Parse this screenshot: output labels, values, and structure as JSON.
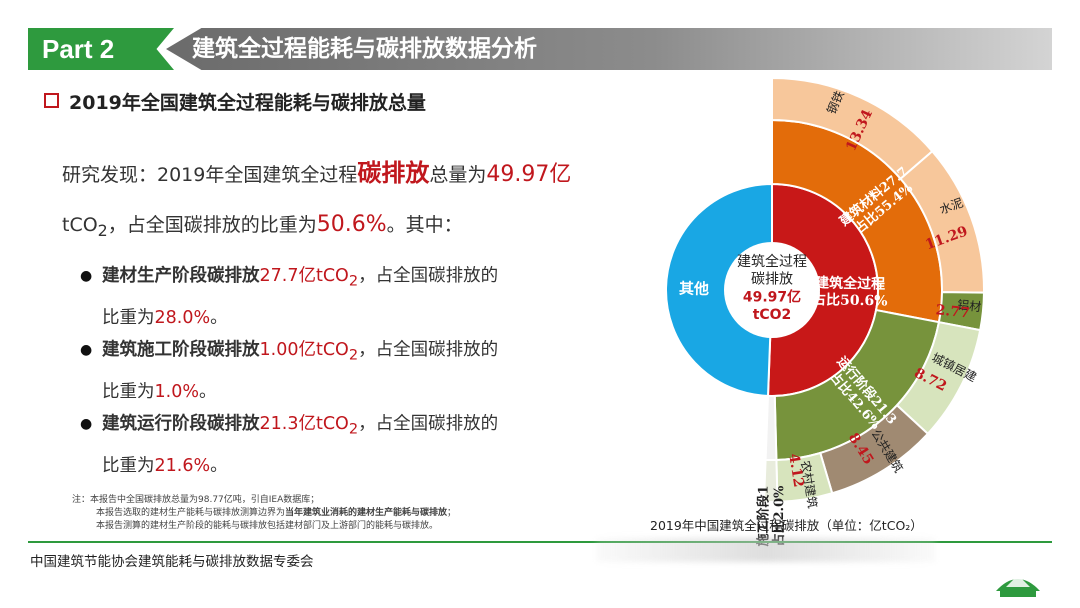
{
  "header": {
    "part_label": "Part 2",
    "title": "建筑全过程能耗与碳排放数据分析"
  },
  "subhead": "2019年全国建筑全过程能耗与碳排放总量",
  "finding": {
    "line1_prefix": "研究发现：2019年全国建筑全过程",
    "line1_emph": "碳排放",
    "line1_mid": "总量为",
    "line1_value": "49.97亿",
    "line2_unit": "tCO",
    "line2_sub": "2",
    "line2_mid": "，占全国碳排放的比重为",
    "line2_value": "50.6%",
    "line2_suffix": "。其中："
  },
  "bullets": [
    {
      "prefix": "建材生产阶段碳排放",
      "value": "27.7亿tCO",
      "sub": "2",
      "suffix": "，占全国碳排放的",
      "share_prefix": "比重为",
      "share": "28.0%",
      "share_suffix": "。"
    },
    {
      "prefix": "建筑施工阶段碳排放",
      "value": "1.00亿tCO",
      "sub": "2",
      "suffix": "，占全国碳排放的",
      "share_prefix": "比重为",
      "share": "1.0%",
      "share_suffix": "。"
    },
    {
      "prefix": "建筑运行阶段碳排放",
      "value": "21.3亿tCO",
      "sub": "2",
      "suffix": "，占全国碳排放的",
      "share_prefix": "比重为",
      "share": "21.6%",
      "share_suffix": "。"
    }
  ],
  "note": {
    "line1": "注：本报告中全国碳排放总量为98.77亿吨，引自IEA数据库；",
    "line2_a": "本报告选取的建材生产能耗与碳排放测算边界为",
    "line2_b": "当年建筑业消耗的建材生产能耗与碳排放",
    "line2_c": "；",
    "line3": "本报告测算的建材生产阶段的能耗与碳排放包括建材部门及上游部门的能耗与碳排放。"
  },
  "footer": "中国建筑节能协会建筑能耗与碳排放数据专委会",
  "chart_data": {
    "type": "sunburst",
    "caption": "2019年中国建筑全过程碳排放（单位：亿tCO₂）",
    "center": {
      "line1": "建筑全过程",
      "line2": "碳排放",
      "value": "49.97亿",
      "unit": "tCO2"
    },
    "colors": {
      "red": "#c81818",
      "blue": "#19a7e4",
      "orange": "#e36c0a",
      "peach": "#f7c79b",
      "green": "#77933c",
      "light_green": "#d7e4bd",
      "brown": "#a08a72"
    },
    "inner_ring": [
      {
        "name": "建筑全过程",
        "label": "建筑全过程占比50.6%",
        "share": 50.6,
        "color": "#c81818"
      },
      {
        "name": "其他",
        "label": "其他",
        "share": 49.4,
        "color": "#19a7e4"
      }
    ],
    "middle_ring": [
      {
        "name": "建筑材料",
        "label1": "建筑材料27.7",
        "label2": "占比55.4%",
        "value": 27.7,
        "share": 55.4,
        "color": "#e36c0a"
      },
      {
        "name": "运行阶段",
        "label1": "运行阶段21.3",
        "label2": "占比42.6%",
        "value": 21.3,
        "share": 42.6,
        "color": "#77933c"
      },
      {
        "name": "施工阶段",
        "label1": "施工阶段1",
        "label2": "占比2.0%",
        "value": 1,
        "share": 2.0,
        "color": "#f2f2f2"
      }
    ],
    "outer_ring": [
      {
        "name": "钢铁",
        "value": 13.34,
        "value_label": "13.34",
        "color": "#f7c79b"
      },
      {
        "name": "水泥",
        "value": 11.29,
        "value_label": "11.29",
        "color": "#f7c79b"
      },
      {
        "name": "铝材",
        "value": 2.77,
        "value_label": "2.77",
        "color": "#77933c"
      },
      {
        "name": "城镇居建",
        "value": 8.72,
        "value_label": "8.72",
        "color": "#d7e4bd"
      },
      {
        "name": "公共建筑",
        "value": 8.45,
        "value_label": "8.45",
        "color": "#a08a72"
      },
      {
        "name": "农村建筑",
        "value": 4.12,
        "value_label": "4.12",
        "color": "#d7e4bd"
      }
    ]
  }
}
